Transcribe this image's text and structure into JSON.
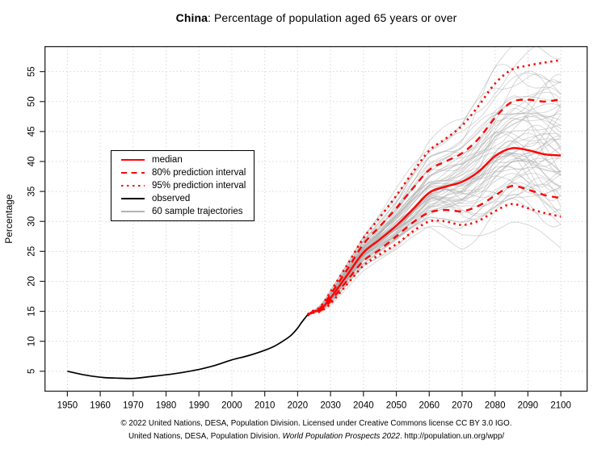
{
  "title": {
    "bold": "China",
    "rest": ": Percentage of population aged 65 years or over"
  },
  "legend": {
    "entries": [
      {
        "label": "median",
        "style": "red-solid"
      },
      {
        "label": "80% prediction interval",
        "style": "red-dashed"
      },
      {
        "label": "95% prediction interval",
        "style": "red-dotted"
      },
      {
        "label": "observed",
        "style": "black-solid"
      },
      {
        "label": "60 sample trajectories",
        "style": "gray-solid"
      }
    ]
  },
  "footer": {
    "line1": "© 2022 United Nations, DESA, Population Division. Licensed under Creative Commons license CC BY 3.0 IGO.",
    "line2_prefix": "United Nations, DESA, Population Division. ",
    "line2_italic": "World Population Prospects 2022",
    "line2_suffix": ". http://population.un.org/wpp/"
  },
  "colors": {
    "projection_red": "#ff0000",
    "observed_black": "#000000",
    "trajectory_gray": "#aaaaaa",
    "grid_gray": "#cfcfcf",
    "axis": "#262626"
  },
  "chart_data": {
    "type": "line",
    "title": "China: Percentage of population aged 65 years or over",
    "xlabel": "",
    "ylabel": "Percentage",
    "xlim": [
      1943.2,
      2108
    ],
    "ylim": [
      1.67,
      59.17
    ],
    "x_ticks": [
      1950,
      1960,
      1970,
      1980,
      1990,
      2000,
      2010,
      2020,
      2030,
      2040,
      2050,
      2060,
      2070,
      2080,
      2090,
      2100
    ],
    "y_ticks": [
      5,
      10,
      15,
      20,
      25,
      30,
      35,
      40,
      45,
      50,
      55
    ],
    "grid": true,
    "legend_position": "left-middle",
    "series": [
      {
        "name": "observed",
        "style": "solid",
        "color": "#000000",
        "width": 1.7,
        "x": [
          1950,
          1955,
          1960,
          1965,
          1970,
          1975,
          1980,
          1985,
          1990,
          1995,
          2000,
          2005,
          2010,
          2013,
          2016,
          2018,
          2020,
          2021,
          2022,
          2023
        ],
        "y": [
          5.0,
          4.4,
          4.0,
          3.85,
          3.8,
          4.1,
          4.4,
          4.8,
          5.3,
          6.0,
          6.9,
          7.6,
          8.5,
          9.2,
          10.2,
          11.0,
          12.2,
          13.0,
          13.7,
          14.4
        ]
      },
      {
        "name": "median",
        "style": "solid",
        "color": "#ff0000",
        "width": 2.4,
        "x": [
          2023,
          2025,
          2027,
          2030,
          2035,
          2040,
          2045,
          2050,
          2055,
          2060,
          2065,
          2070,
          2075,
          2080,
          2085,
          2090,
          2095,
          2100
        ],
        "y": [
          14.4,
          15.0,
          15.3,
          17.2,
          21.0,
          24.8,
          27.0,
          29.3,
          32.0,
          34.8,
          35.8,
          36.6,
          38.3,
          40.9,
          42.2,
          41.9,
          41.2,
          41.0
        ]
      },
      {
        "name": "upper80",
        "style": "dashed",
        "color": "#ff0000",
        "width": 2.4,
        "x": [
          2023,
          2025,
          2027,
          2030,
          2035,
          2040,
          2045,
          2050,
          2055,
          2060,
          2065,
          2070,
          2075,
          2080,
          2085,
          2090,
          2095,
          2100
        ],
        "y": [
          14.4,
          15.1,
          15.6,
          17.8,
          21.9,
          26.2,
          29.2,
          32.2,
          35.5,
          38.6,
          40.0,
          41.4,
          43.8,
          47.3,
          49.9,
          50.3,
          50.0,
          50.4
        ]
      },
      {
        "name": "lower80",
        "style": "dashed",
        "color": "#ff0000",
        "width": 2.4,
        "x": [
          2023,
          2025,
          2027,
          2030,
          2035,
          2040,
          2045,
          2050,
          2055,
          2060,
          2065,
          2070,
          2075,
          2080,
          2085,
          2090,
          2095,
          2100
        ],
        "y": [
          14.4,
          14.9,
          15.1,
          16.7,
          20.1,
          23.4,
          25.3,
          27.5,
          29.8,
          31.5,
          31.9,
          31.7,
          32.6,
          34.3,
          35.9,
          35.3,
          34.4,
          33.9
        ]
      },
      {
        "name": "upper95",
        "style": "dotted",
        "color": "#ff0000",
        "width": 2.6,
        "x": [
          2023,
          2025,
          2027,
          2030,
          2035,
          2040,
          2045,
          2050,
          2055,
          2060,
          2065,
          2070,
          2075,
          2080,
          2085,
          2090,
          2095,
          2100
        ],
        "y": [
          14.5,
          15.2,
          15.8,
          18.3,
          22.7,
          27.2,
          30.7,
          34.3,
          38.2,
          41.8,
          43.8,
          46.0,
          49.3,
          53.0,
          55.3,
          56.0,
          56.5,
          56.9
        ]
      },
      {
        "name": "lower95",
        "style": "dotted",
        "color": "#ff0000",
        "width": 2.6,
        "x": [
          2023,
          2025,
          2027,
          2030,
          2035,
          2040,
          2045,
          2050,
          2055,
          2060,
          2065,
          2070,
          2075,
          2080,
          2085,
          2090,
          2095,
          2100
        ],
        "y": [
          14.3,
          14.8,
          15.0,
          16.3,
          19.5,
          22.6,
          24.5,
          26.2,
          28.3,
          30.0,
          30.0,
          29.4,
          30.1,
          31.7,
          32.9,
          32.2,
          31.4,
          30.8
        ]
      }
    ],
    "sample_trajectories": {
      "count": 60,
      "seed": 20,
      "color": "#aaaaaa",
      "opacity": 0.5,
      "width": 0.9
    }
  }
}
